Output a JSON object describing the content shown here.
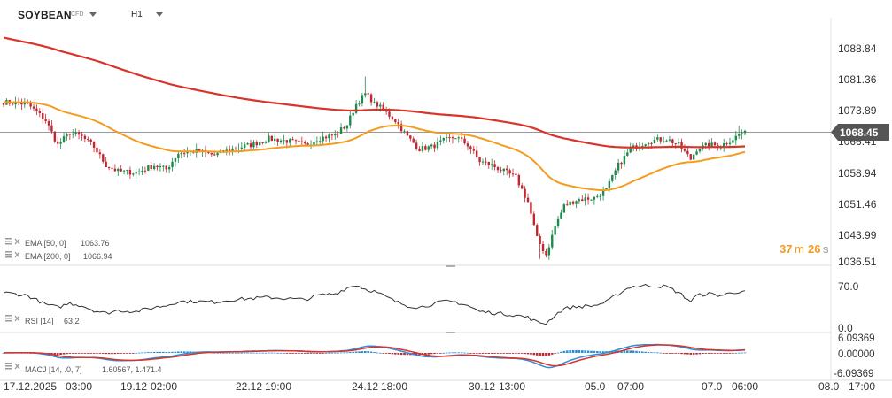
{
  "header": {
    "symbol": "SOYBEAN",
    "instrument_type": "CFD",
    "timeframe": "H1"
  },
  "countdown": {
    "minutes": "37",
    "minutes_unit": "m",
    "seconds": "26",
    "seconds_unit": "s"
  },
  "colors": {
    "up": "#1f8a4c",
    "down": "#c3262f",
    "ema50": "#f39c1f",
    "ema200": "#d9342b",
    "rsi": "#333333",
    "macd": "#2b8fd6",
    "signal": "#d9342b",
    "price_tag": "#555555",
    "countdown": "#f39c1f"
  },
  "chart_data": [
    {
      "type": "candlestick",
      "panel": "price",
      "yticks": [
        "1088.84",
        "1081.36",
        "1073.89",
        "1066.41",
        "1058.94",
        "1051.46",
        "1043.99",
        "1036.51"
      ],
      "ylim": [
        1035.0,
        1093.5
      ],
      "current_price": "1068.45",
      "xticks": [
        "17.12.2025",
        "03:00",
        "19.12",
        "02:00",
        "22.12",
        "19:00",
        "24.12",
        "18:00",
        "30.12",
        "13:00",
        "05.0",
        "07:00",
        "07.0",
        "06:00",
        "08.0",
        "17:00"
      ],
      "close_path": [
        [
          0,
          1075.5
        ],
        [
          8,
          1075.0
        ],
        [
          14,
          1071.0
        ],
        [
          18,
          1065.0
        ],
        [
          22,
          1068.0
        ],
        [
          26,
          1067.0
        ],
        [
          30,
          1064.5
        ],
        [
          34,
          1060.0
        ],
        [
          38,
          1058.5
        ],
        [
          44,
          1058.2
        ],
        [
          50,
          1060.0
        ],
        [
          54,
          1059.0
        ],
        [
          58,
          1063.0
        ],
        [
          64,
          1063.5
        ],
        [
          70,
          1062.5
        ],
        [
          76,
          1064.0
        ],
        [
          82,
          1065.0
        ],
        [
          88,
          1066.5
        ],
        [
          94,
          1066.0
        ],
        [
          100,
          1065.0
        ],
        [
          104,
          1066.5
        ],
        [
          110,
          1067.5
        ],
        [
          114,
          1070.0
        ],
        [
          117,
          1075.0
        ],
        [
          120,
          1077.5
        ],
        [
          123,
          1075.5
        ],
        [
          126,
          1073.5
        ],
        [
          130,
          1071.0
        ],
        [
          134,
          1067.0
        ],
        [
          138,
          1064.0
        ],
        [
          142,
          1064.5
        ],
        [
          146,
          1066.0
        ],
        [
          150,
          1067.0
        ],
        [
          154,
          1065.0
        ],
        [
          158,
          1061.0
        ],
        [
          162,
          1060.0
        ],
        [
          166,
          1058.5
        ],
        [
          170,
          1057.0
        ],
        [
          174,
          1051.0
        ],
        [
          177,
          1042.0
        ],
        [
          180,
          1038.0
        ],
        [
          183,
          1045.0
        ],
        [
          186,
          1050.0
        ],
        [
          190,
          1051.5
        ],
        [
          196,
          1052.0
        ],
        [
          200,
          1054.0
        ],
        [
          204,
          1060.0
        ],
        [
          208,
          1064.0
        ],
        [
          214,
          1066.0
        ],
        [
          220,
          1066.5
        ],
        [
          224,
          1065.0
        ],
        [
          228,
          1061.5
        ],
        [
          230,
          1064.0
        ],
        [
          234,
          1065.0
        ],
        [
          238,
          1064.8
        ],
        [
          242,
          1066.5
        ],
        [
          246,
          1068.45
        ]
      ],
      "rsi_path": [
        [
          0,
          60
        ],
        [
          8,
          55
        ],
        [
          14,
          40
        ],
        [
          18,
          35
        ],
        [
          22,
          42
        ],
        [
          26,
          38
        ],
        [
          30,
          30
        ],
        [
          34,
          25
        ],
        [
          38,
          30
        ],
        [
          44,
          28
        ],
        [
          50,
          35
        ],
        [
          54,
          38
        ],
        [
          58,
          45
        ],
        [
          64,
          45
        ],
        [
          70,
          44
        ],
        [
          76,
          48
        ],
        [
          82,
          50
        ],
        [
          88,
          52
        ],
        [
          94,
          50
        ],
        [
          100,
          48
        ],
        [
          104,
          55
        ],
        [
          110,
          58
        ],
        [
          114,
          68
        ],
        [
          117,
          73
        ],
        [
          120,
          66
        ],
        [
          123,
          62
        ],
        [
          126,
          55
        ],
        [
          130,
          45
        ],
        [
          134,
          38
        ],
        [
          138,
          35
        ],
        [
          142,
          40
        ],
        [
          146,
          45
        ],
        [
          150,
          44
        ],
        [
          154,
          38
        ],
        [
          158,
          28
        ],
        [
          162,
          26
        ],
        [
          166,
          24
        ],
        [
          170,
          22
        ],
        [
          174,
          18
        ],
        [
          177,
          10
        ],
        [
          180,
          8
        ],
        [
          183,
          22
        ],
        [
          186,
          33
        ],
        [
          190,
          36
        ],
        [
          196,
          38
        ],
        [
          200,
          44
        ],
        [
          204,
          58
        ],
        [
          208,
          70
        ],
        [
          214,
          72
        ],
        [
          220,
          70
        ],
        [
          224,
          60
        ],
        [
          228,
          45
        ],
        [
          230,
          55
        ],
        [
          234,
          58
        ],
        [
          238,
          55
        ],
        [
          242,
          60
        ],
        [
          246,
          63.2
        ]
      ]
    }
  ],
  "indicators": {
    "ema50": {
      "label": "EMA [50, 0]",
      "value": "1063.76"
    },
    "ema200": {
      "label": "EMA [200, 0]",
      "value": "1066.94"
    },
    "rsi": {
      "label": "RSI [14]",
      "value": "63.2",
      "yticks": [
        "70.0",
        "0.0"
      ],
      "ylim": [
        0,
        100
      ]
    },
    "macd": {
      "label": "MACJ [14, .0, 7]",
      "values": "1.60567, 1.471.4",
      "yticks": [
        "6.09369",
        "0.00000",
        "-6.09369"
      ],
      "ylim": [
        -7.5,
        7.5
      ]
    }
  }
}
